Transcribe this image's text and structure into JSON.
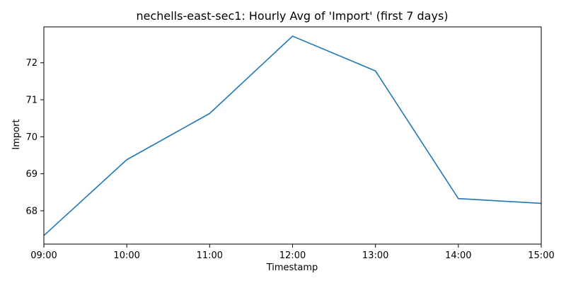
{
  "chart_data": {
    "type": "line",
    "title": "nechells-east-sec1: Hourly Avg of 'Import' (first 7 days)",
    "xlabel": "Timestamp",
    "ylabel": "Import",
    "x": [
      "09:00",
      "10:00",
      "11:00",
      "12:00",
      "13:00",
      "14:00",
      "15:00"
    ],
    "xlim": [
      "09:00",
      "15:00"
    ],
    "ylim": [
      67.1,
      72.97
    ],
    "yticks": [
      68,
      69,
      70,
      71,
      72
    ],
    "series": [
      {
        "values": [
          67.33,
          69.38,
          70.63,
          72.72,
          71.78,
          68.33,
          68.2
        ],
        "color": "#1f77b4"
      }
    ],
    "grid": false,
    "legend": "none"
  }
}
